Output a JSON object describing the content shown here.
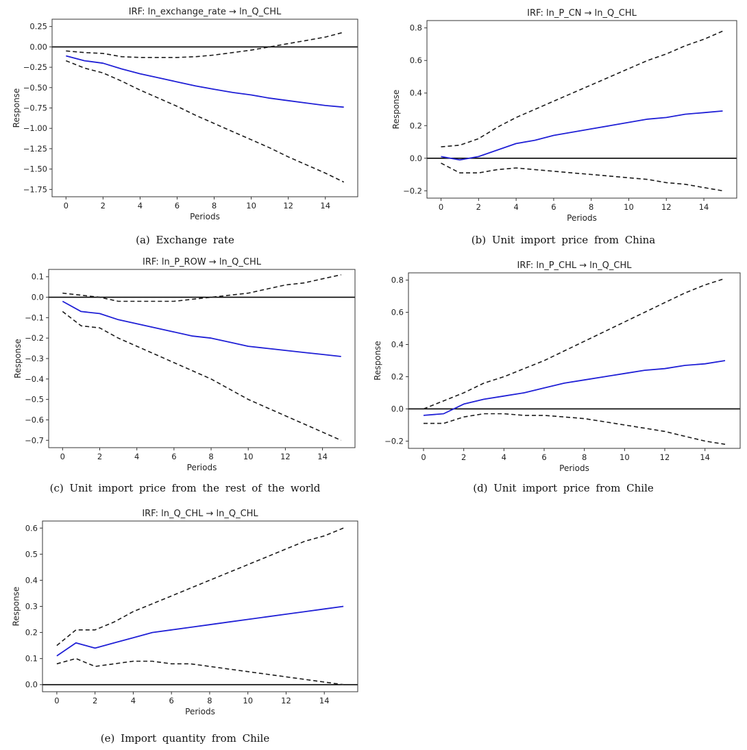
{
  "figure": {
    "captions": [
      "(a)  Exchange  rate",
      "(b)  Unit  import  price  from  China",
      "(c)  Unit  import  price  from  the  rest  of  the  world",
      "(d)  Unit  import  price  from  Chile",
      "(e)  Import  quantity  from  Chile"
    ]
  },
  "colors": {
    "irf_line": "#1f1fd6",
    "ci_line": "#1a1a1a",
    "zero_line": "#000000",
    "axes": "#333333"
  },
  "chart_data": [
    {
      "type": "line",
      "title": "IRF: ln_exchange_rate → ln_Q_CHL",
      "xlabel": "Periods",
      "ylabel": "Response",
      "xlim": [
        0,
        15
      ],
      "ylim": [
        -1.75,
        0.25
      ],
      "xticks": [
        0,
        2,
        4,
        6,
        8,
        10,
        12,
        14
      ],
      "xtick_labels": [
        "0",
        "2",
        "4",
        "6",
        "8",
        "10",
        "12",
        "14"
      ],
      "yticks": [
        0.25,
        0.0,
        -0.25,
        -0.5,
        -0.75,
        -1.0,
        -1.25,
        -1.5,
        -1.75
      ],
      "ytick_labels": [
        "0.25",
        "0.00",
        "−0.25",
        "−0.50",
        "−0.75",
        "−1.00",
        "−1.25",
        "−1.50",
        "−1.75"
      ],
      "zero_line": true,
      "x": [
        0,
        1,
        2,
        3,
        4,
        5,
        6,
        7,
        8,
        9,
        10,
        11,
        12,
        13,
        14,
        15
      ],
      "series": [
        {
          "name": "irf",
          "style": "solid",
          "values": [
            -0.11,
            -0.17,
            -0.2,
            -0.27,
            -0.33,
            -0.38,
            -0.43,
            -0.48,
            -0.52,
            -0.56,
            -0.59,
            -0.63,
            -0.66,
            -0.69,
            -0.72,
            -0.74
          ]
        },
        {
          "name": "upper",
          "style": "dashed",
          "values": [
            -0.05,
            -0.07,
            -0.08,
            -0.12,
            -0.13,
            -0.13,
            -0.13,
            -0.12,
            -0.1,
            -0.07,
            -0.04,
            0.0,
            0.04,
            0.08,
            0.12,
            0.18
          ]
        },
        {
          "name": "lower",
          "style": "dashed",
          "values": [
            -0.17,
            -0.26,
            -0.32,
            -0.42,
            -0.53,
            -0.63,
            -0.73,
            -0.84,
            -0.94,
            -1.04,
            -1.14,
            -1.24,
            -1.35,
            -1.45,
            -1.55,
            -1.66
          ]
        }
      ]
    },
    {
      "type": "line",
      "title": "IRF: ln_P_CN → ln_Q_CHL",
      "xlabel": "Periods",
      "ylabel": "Response",
      "xlim": [
        0,
        15
      ],
      "ylim": [
        -0.2,
        0.8
      ],
      "xticks": [
        0,
        2,
        4,
        6,
        8,
        10,
        12,
        14
      ],
      "xtick_labels": [
        "0",
        "2",
        "4",
        "6",
        "8",
        "10",
        "12",
        "14"
      ],
      "yticks": [
        0.8,
        0.6,
        0.4,
        0.2,
        0.0,
        -0.2
      ],
      "ytick_labels": [
        "0.8",
        "0.6",
        "0.4",
        "0.2",
        "0.0",
        "−0.2"
      ],
      "zero_line": true,
      "x": [
        0,
        1,
        2,
        3,
        4,
        5,
        6,
        7,
        8,
        9,
        10,
        11,
        12,
        13,
        14,
        15
      ],
      "series": [
        {
          "name": "irf",
          "style": "solid",
          "values": [
            0.01,
            -0.01,
            0.01,
            0.05,
            0.09,
            0.11,
            0.14,
            0.16,
            0.18,
            0.2,
            0.22,
            0.24,
            0.25,
            0.27,
            0.28,
            0.29
          ]
        },
        {
          "name": "upper",
          "style": "dashed",
          "values": [
            0.07,
            0.08,
            0.12,
            0.19,
            0.25,
            0.3,
            0.35,
            0.4,
            0.45,
            0.5,
            0.55,
            0.6,
            0.64,
            0.69,
            0.73,
            0.78
          ]
        },
        {
          "name": "lower",
          "style": "dashed",
          "values": [
            -0.03,
            -0.09,
            -0.09,
            -0.07,
            -0.06,
            -0.07,
            -0.08,
            -0.09,
            -0.1,
            -0.11,
            -0.12,
            -0.13,
            -0.15,
            -0.16,
            -0.18,
            -0.2
          ]
        }
      ]
    },
    {
      "type": "line",
      "title": "IRF: ln_P_ROW → ln_Q_CHL",
      "xlabel": "Periods",
      "ylabel": "Response",
      "xlim": [
        0,
        15
      ],
      "ylim": [
        -0.7,
        0.1
      ],
      "xticks": [
        0,
        2,
        4,
        6,
        8,
        10,
        12,
        14
      ],
      "xtick_labels": [
        "0",
        "2",
        "4",
        "6",
        "8",
        "10",
        "12",
        "14"
      ],
      "yticks": [
        0.1,
        0.0,
        -0.1,
        -0.2,
        -0.3,
        -0.4,
        -0.5,
        -0.6,
        -0.7
      ],
      "ytick_labels": [
        "0.1",
        "0.0",
        "−0.1",
        "−0.2",
        "−0.3",
        "−0.4",
        "−0.5",
        "−0.6",
        "−0.7"
      ],
      "zero_line": true,
      "x": [
        0,
        1,
        2,
        3,
        4,
        5,
        6,
        7,
        8,
        9,
        10,
        11,
        12,
        13,
        14,
        15
      ],
      "series": [
        {
          "name": "irf",
          "style": "solid",
          "values": [
            -0.02,
            -0.07,
            -0.08,
            -0.11,
            -0.13,
            -0.15,
            -0.17,
            -0.19,
            -0.2,
            -0.22,
            -0.24,
            -0.25,
            -0.26,
            -0.27,
            -0.28,
            -0.29
          ]
        },
        {
          "name": "upper",
          "style": "dashed",
          "values": [
            0.02,
            0.01,
            0.0,
            -0.02,
            -0.02,
            -0.02,
            -0.02,
            -0.01,
            0.0,
            0.01,
            0.02,
            0.04,
            0.06,
            0.07,
            0.09,
            0.11
          ]
        },
        {
          "name": "lower",
          "style": "dashed",
          "values": [
            -0.07,
            -0.14,
            -0.15,
            -0.2,
            -0.24,
            -0.28,
            -0.32,
            -0.36,
            -0.4,
            -0.45,
            -0.5,
            -0.54,
            -0.58,
            -0.62,
            -0.66,
            -0.7
          ]
        }
      ]
    },
    {
      "type": "line",
      "title": "IRF: ln_P_CHL → ln_Q_CHL",
      "xlabel": "Periods",
      "ylabel": "Response",
      "xlim": [
        0,
        15
      ],
      "ylim": [
        -0.2,
        0.8
      ],
      "xticks": [
        0,
        2,
        4,
        6,
        8,
        10,
        12,
        14
      ],
      "xtick_labels": [
        "0",
        "2",
        "4",
        "6",
        "8",
        "10",
        "12",
        "14"
      ],
      "yticks": [
        0.8,
        0.6,
        0.4,
        0.2,
        0.0,
        -0.2
      ],
      "ytick_labels": [
        "0.8",
        "0.6",
        "0.4",
        "0.2",
        "0.0",
        "−0.2"
      ],
      "zero_line": true,
      "x": [
        0,
        1,
        2,
        3,
        4,
        5,
        6,
        7,
        8,
        9,
        10,
        11,
        12,
        13,
        14,
        15
      ],
      "series": [
        {
          "name": "irf",
          "style": "solid",
          "values": [
            -0.04,
            -0.03,
            0.03,
            0.06,
            0.08,
            0.1,
            0.13,
            0.16,
            0.18,
            0.2,
            0.22,
            0.24,
            0.25,
            0.27,
            0.28,
            0.3
          ]
        },
        {
          "name": "upper",
          "style": "dashed",
          "values": [
            0.0,
            0.05,
            0.1,
            0.16,
            0.2,
            0.25,
            0.3,
            0.36,
            0.42,
            0.48,
            0.54,
            0.6,
            0.66,
            0.72,
            0.77,
            0.81
          ]
        },
        {
          "name": "lower",
          "style": "dashed",
          "values": [
            -0.09,
            -0.09,
            -0.05,
            -0.03,
            -0.03,
            -0.04,
            -0.04,
            -0.05,
            -0.06,
            -0.08,
            -0.1,
            -0.12,
            -0.14,
            -0.17,
            -0.2,
            -0.22
          ]
        }
      ]
    },
    {
      "type": "line",
      "title": "IRF: ln_Q_CHL → ln_Q_CHL",
      "xlabel": "Periods",
      "ylabel": "Response",
      "xlim": [
        0,
        15
      ],
      "ylim": [
        0.0,
        0.6
      ],
      "xticks": [
        0,
        2,
        4,
        6,
        8,
        10,
        12,
        14
      ],
      "xtick_labels": [
        "0",
        "2",
        "4",
        "6",
        "8",
        "10",
        "12",
        "14"
      ],
      "yticks": [
        0.6,
        0.5,
        0.4,
        0.3,
        0.2,
        0.1,
        0.0
      ],
      "ytick_labels": [
        "0.6",
        "0.5",
        "0.4",
        "0.3",
        "0.2",
        "0.1",
        "0.0"
      ],
      "zero_line": true,
      "x": [
        0,
        1,
        2,
        3,
        4,
        5,
        6,
        7,
        8,
        9,
        10,
        11,
        12,
        13,
        14,
        15
      ],
      "series": [
        {
          "name": "irf",
          "style": "solid",
          "values": [
            0.11,
            0.16,
            0.14,
            0.16,
            0.18,
            0.2,
            0.21,
            0.22,
            0.23,
            0.24,
            0.25,
            0.26,
            0.27,
            0.28,
            0.29,
            0.3
          ]
        },
        {
          "name": "upper",
          "style": "dashed",
          "values": [
            0.15,
            0.21,
            0.21,
            0.24,
            0.28,
            0.31,
            0.34,
            0.37,
            0.4,
            0.43,
            0.46,
            0.49,
            0.52,
            0.55,
            0.57,
            0.6
          ]
        },
        {
          "name": "lower",
          "style": "dashed",
          "values": [
            0.08,
            0.1,
            0.07,
            0.08,
            0.09,
            0.09,
            0.08,
            0.08,
            0.07,
            0.06,
            0.05,
            0.04,
            0.03,
            0.02,
            0.01,
            0.0
          ]
        }
      ]
    }
  ]
}
